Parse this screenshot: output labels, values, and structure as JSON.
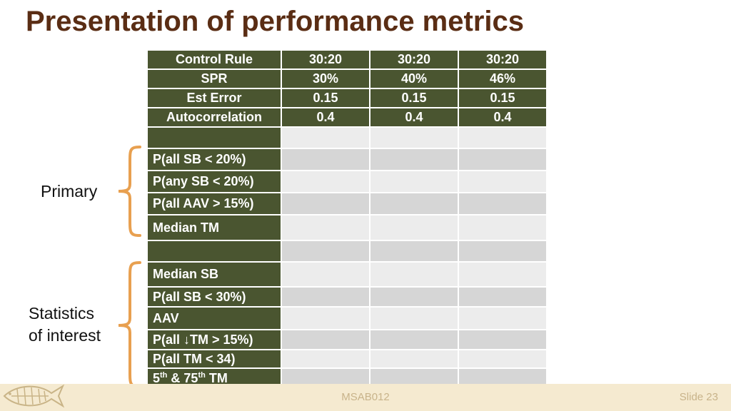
{
  "slide": {
    "title": "Presentation of performance metrics",
    "footer_center": "MSAB012",
    "footer_right": "Slide 23"
  },
  "table": {
    "header_rows": [
      {
        "label": "Control Rule",
        "values": [
          "30:20",
          "30:20",
          "30:20"
        ]
      },
      {
        "label": "SPR",
        "values": [
          "30%",
          "40%",
          "46%"
        ]
      },
      {
        "label": "Est Error",
        "values": [
          "0.15",
          "0.15",
          "0.15"
        ]
      },
      {
        "label": "Autocorrelation",
        "values": [
          "0.4",
          "0.4",
          "0.4"
        ]
      }
    ],
    "metric_rows": [
      {
        "label": ""
      },
      {
        "label": "P(all SB < 20%)"
      },
      {
        "label": "P(any SB < 20%)"
      },
      {
        "label": "P(all AAV > 15%)"
      },
      {
        "label": "Median TM"
      },
      {
        "label": ""
      },
      {
        "label": "Median SB"
      },
      {
        "label": "P(all SB < 30%)"
      },
      {
        "label": "AAV"
      },
      {
        "label": "P(all ↓TM > 15%)"
      },
      {
        "label": "P(all TM < 34)"
      },
      {
        "label_parts": [
          "5",
          "th",
          " & 75",
          "th",
          " TM"
        ]
      }
    ]
  },
  "groups": {
    "primary": "Primary",
    "interest_line1": "Statistics",
    "interest_line2": "of interest"
  },
  "colors": {
    "title": "#5a2d14",
    "header_bg": "#4a5530",
    "bracket": "#e8a050",
    "footer_bg": "#f5ead0"
  }
}
